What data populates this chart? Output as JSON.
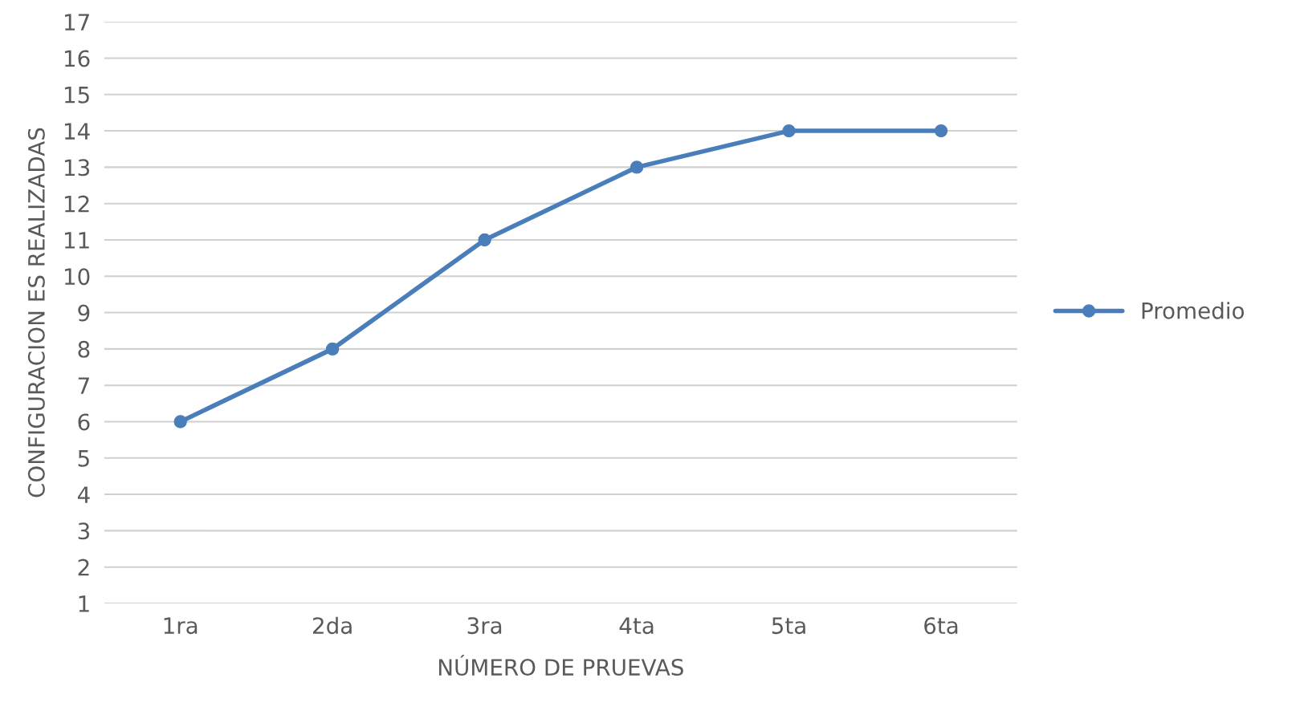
{
  "chart_data": {
    "type": "line",
    "xlabel": "NÚMERO DE PRUEVAS",
    "ylabel": "CONFIGURACION ES REALIZADAS",
    "categories": [
      "1ra",
      "2da",
      "3ra",
      "4ta",
      "5ta",
      "6ta"
    ],
    "series": [
      {
        "name": "Promedio",
        "color": "#4a7ebb",
        "values": [
          6,
          8,
          11,
          13,
          14,
          14
        ]
      }
    ],
    "ylim": [
      1,
      17
    ],
    "yticks": [
      1,
      2,
      3,
      4,
      5,
      6,
      7,
      8,
      9,
      10,
      11,
      12,
      13,
      14,
      15,
      16,
      17
    ],
    "grid": "y",
    "legend": "right",
    "marker": "circle",
    "line_style": "solid"
  }
}
